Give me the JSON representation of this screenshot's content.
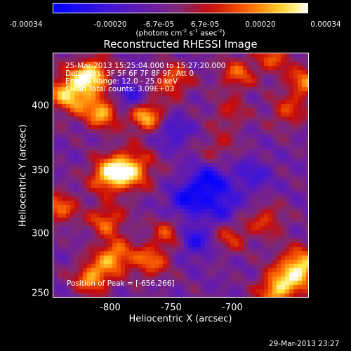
{
  "colorbar": {
    "ticks": [
      "-0.00034",
      "-0.00020",
      "-6.7e-05",
      "6.7e-05",
      "0.00020",
      "0.00034"
    ],
    "unit_main": "(photons cm",
    "unit_exp1": "-2",
    "unit_mid1": " s",
    "unit_exp2": "-1",
    "unit_mid2": " asec",
    "unit_exp3": "-2",
    "unit_end": ")",
    "range": [
      -0.00034,
      0.00034
    ]
  },
  "title": "Reconstructed RHESSI Image",
  "info_lines": {
    "time": "25-Mar-2013 15:25:04.000 to 15:27:20.000",
    "detectors": "Detectors: 3F 5F 6F 7F 8F 9F, Att 0",
    "energy": "Energy Range: 12.0 - 25.0 keV",
    "clean": "Clean    Total counts: 3.09E+03"
  },
  "peak_text": "Position of Peak = [-656,266]",
  "axes": {
    "xlabel": "Heliocentric X (arcsec)",
    "ylabel": "Heliocentric Y (arcsec)",
    "xticks": [
      "-800",
      "-750",
      "-700"
    ],
    "yticks": [
      "400",
      "350",
      "300",
      "250"
    ],
    "xlim": [
      -842,
      -665
    ],
    "ylim": [
      249,
      441
    ]
  },
  "timestamp": "29-Mar-2013 23:27",
  "chart_data": {
    "type": "heatmap",
    "title": "Reconstructed RHESSI Image",
    "xlabel": "Heliocentric X (arcsec)",
    "ylabel": "Heliocentric Y (arcsec)",
    "xlim": [
      -842,
      -665
    ],
    "ylim": [
      249,
      441
    ],
    "colorbar_range": [
      -0.00034,
      0.00034
    ],
    "peak_position": [
      -656,
      266
    ],
    "hot_regions": [
      {
        "x": -830,
        "y": 410,
        "level": 0.9
      },
      {
        "x": -815,
        "y": 425,
        "level": 0.85
      },
      {
        "x": -808,
        "y": 395,
        "level": 0.8
      },
      {
        "x": -778,
        "y": 392,
        "level": 0.85
      },
      {
        "x": -760,
        "y": 420,
        "level": 0.6
      },
      {
        "x": -790,
        "y": 350,
        "level": 0.9
      },
      {
        "x": -805,
        "y": 345,
        "level": 0.7
      },
      {
        "x": -838,
        "y": 320,
        "level": 0.6
      },
      {
        "x": -805,
        "y": 310,
        "level": 0.6
      },
      {
        "x": -800,
        "y": 282,
        "level": 0.75
      },
      {
        "x": -815,
        "y": 265,
        "level": 0.75
      },
      {
        "x": -775,
        "y": 278,
        "level": 0.6
      },
      {
        "x": -762,
        "y": 300,
        "level": 0.5
      },
      {
        "x": -715,
        "y": 425,
        "level": 0.55
      },
      {
        "x": -690,
        "y": 438,
        "level": 0.5
      },
      {
        "x": -720,
        "y": 395,
        "level": 0.35
      },
      {
        "x": -668,
        "y": 418,
        "level": 0.65
      },
      {
        "x": -680,
        "y": 395,
        "level": 0.45
      },
      {
        "x": -672,
        "y": 272,
        "level": 1.0
      },
      {
        "x": -688,
        "y": 255,
        "level": 0.8
      },
      {
        "x": -695,
        "y": 310,
        "level": 0.45
      },
      {
        "x": -720,
        "y": 298,
        "level": 0.45
      },
      {
        "x": -728,
        "y": 368,
        "level": 0.3
      }
    ],
    "cold_regions": [
      {
        "x": -735,
        "y": 340,
        "level": -0.7
      },
      {
        "x": -750,
        "y": 325,
        "level": -0.6
      },
      {
        "x": -725,
        "y": 320,
        "level": -0.5
      },
      {
        "x": -745,
        "y": 295,
        "level": -0.55
      },
      {
        "x": -760,
        "y": 380,
        "level": -0.4
      },
      {
        "x": -705,
        "y": 345,
        "level": -0.35
      },
      {
        "x": -790,
        "y": 405,
        "level": -0.5
      }
    ]
  }
}
